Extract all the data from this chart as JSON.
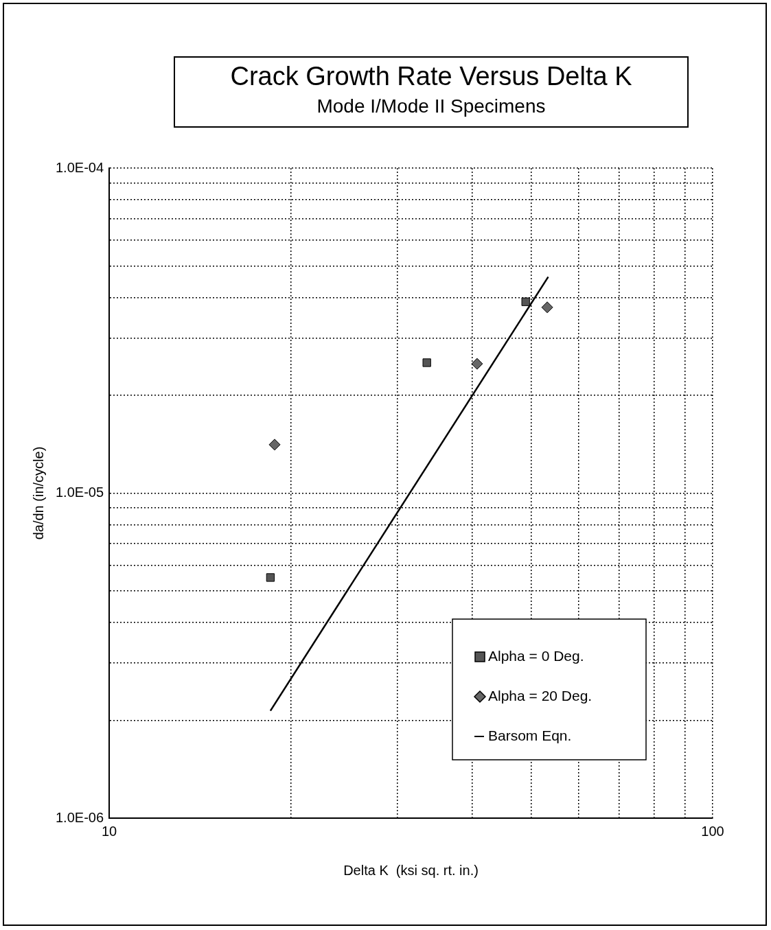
{
  "chart_data": {
    "type": "scatter",
    "title": "Crack Growth Rate Versus Delta K",
    "subtitle": "Mode I/Mode II Specimens",
    "xlabel": "Delta K  (ksi sq. rt. in.)",
    "ylabel": "da/dn (in/cycle)",
    "log": "xy",
    "xlim": [
      10,
      100
    ],
    "ylim": [
      1e-06,
      0.0001
    ],
    "xticks": [
      10,
      {
        "value": 20,
        "label": null
      },
      {
        "value": 30,
        "label": null
      },
      {
        "value": 40,
        "label": null
      },
      {
        "value": 50,
        "label": null
      },
      {
        "value": 60,
        "label": null
      },
      {
        "value": 70,
        "label": null
      },
      {
        "value": 80,
        "label": null
      },
      {
        "value": 90,
        "label": null
      },
      100
    ],
    "yticks": [
      {
        "value": 1e-06,
        "label": "1.0E-06"
      },
      {
        "value": 2e-06,
        "label": null
      },
      {
        "value": 3e-06,
        "label": null
      },
      {
        "value": 4e-06,
        "label": null
      },
      {
        "value": 5e-06,
        "label": null
      },
      {
        "value": 6e-06,
        "label": null
      },
      {
        "value": 7e-06,
        "label": null
      },
      {
        "value": 8e-06,
        "label": null
      },
      {
        "value": 9e-06,
        "label": null
      },
      {
        "value": 1e-05,
        "label": "1.0E-05"
      },
      {
        "value": 2e-05,
        "label": null
      },
      {
        "value": 3e-05,
        "label": null
      },
      {
        "value": 4e-05,
        "label": null
      },
      {
        "value": 5e-05,
        "label": null
      },
      {
        "value": 6e-05,
        "label": null
      },
      {
        "value": 7e-05,
        "label": null
      },
      {
        "value": 8e-05,
        "label": null
      },
      {
        "value": 9e-05,
        "label": null
      },
      {
        "value": 0.0001,
        "label": "1.0E-04"
      }
    ],
    "grid": true,
    "legend": "bottom right",
    "series": [
      {
        "name": "Alpha = 0 Deg.",
        "marker": "square",
        "color": "#555555",
        "x": [
          18.5,
          33.6,
          49
        ],
        "values": [
          5.5e-06,
          2.52e-05,
          3.88e-05
        ]
      },
      {
        "name": "Alpha = 20 Deg.",
        "marker": "diamond",
        "color": "#666666",
        "x": [
          18.8,
          40.7,
          53.2
        ],
        "values": [
          1.41e-05,
          2.5e-05,
          3.73e-05
        ]
      },
      {
        "name": "Barsom Eqn.",
        "type": "line",
        "marker": "none",
        "color": "#000000",
        "x": [
          18.5,
          53.4
        ],
        "values": [
          2.14e-06,
          4.63e-05
        ]
      }
    ]
  }
}
